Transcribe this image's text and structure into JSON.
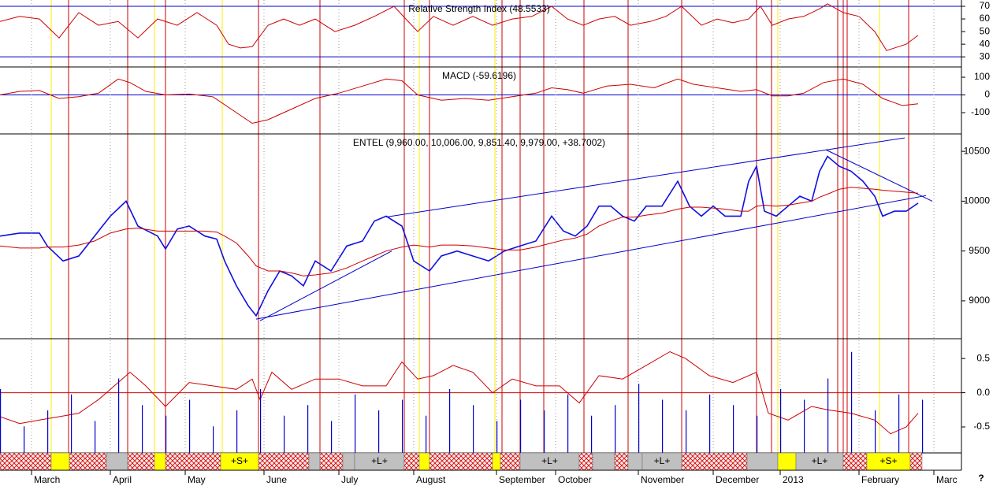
{
  "corner_label": "?",
  "signals": {
    "red_color": "#cc0000",
    "yellow_color": "#ffee00",
    "red_x": [
      17.4,
      32.4,
      42,
      65.6,
      81.2,
      102.6,
      109,
      127.4,
      132,
      138,
      148.2,
      159.4,
      173,
      192,
      195.8,
      212.6,
      214,
      215,
      230.6
    ],
    "yellow_x": [
      13,
      39.2,
      56.4,
      106.4,
      125.6,
      197.4,
      223.2
    ]
  },
  "band": {
    "segments": [
      {
        "x": [
          0,
          13
        ],
        "color": "#cc0000",
        "hatch": true
      },
      {
        "x": [
          13,
          17.6
        ],
        "color": "#ffff00"
      },
      {
        "x": [
          17.6,
          27
        ],
        "color": "#cc0000",
        "hatch": true
      },
      {
        "x": [
          27,
          32.4
        ],
        "color": "#c0c0c0"
      },
      {
        "x": [
          32.4,
          39.2
        ],
        "color": "#cc0000",
        "hatch": true
      },
      {
        "x": [
          39.2,
          42
        ],
        "color": "#ffff00"
      },
      {
        "x": [
          42,
          56
        ],
        "color": "#cc0000",
        "hatch": true
      },
      {
        "x": [
          56,
          65.6
        ],
        "color": "#ffff00",
        "label": "+S+"
      },
      {
        "x": [
          65.6,
          78.4
        ],
        "color": "#cc0000",
        "hatch": true
      },
      {
        "x": [
          78.4,
          81.2
        ],
        "color": "#c0c0c0"
      },
      {
        "x": [
          81.2,
          87
        ],
        "color": "#cc0000",
        "hatch": true
      },
      {
        "x": [
          87,
          90
        ],
        "color": "#c0c0c0"
      },
      {
        "x": [
          90,
          102.6
        ],
        "color": "#c0c0c0",
        "label": "+L+"
      },
      {
        "x": [
          102.6,
          106.4
        ],
        "color": "#cc0000",
        "hatch": true
      },
      {
        "x": [
          106.4,
          109
        ],
        "color": "#ffff00"
      },
      {
        "x": [
          109,
          125
        ],
        "color": "#cc0000",
        "hatch": true
      },
      {
        "x": [
          125,
          127
        ],
        "color": "#ffff00"
      },
      {
        "x": [
          127,
          132
        ],
        "color": "#cc0000",
        "hatch": true
      },
      {
        "x": [
          132,
          147
        ],
        "color": "#c0c0c0",
        "label": "+L+"
      },
      {
        "x": [
          147,
          150.4
        ],
        "color": "#cc0000",
        "hatch": true
      },
      {
        "x": [
          150.4,
          156
        ],
        "color": "#c0c0c0"
      },
      {
        "x": [
          156,
          159.4
        ],
        "color": "#cc0000",
        "hatch": true
      },
      {
        "x": [
          159.4,
          163
        ],
        "color": "#c0c0c0"
      },
      {
        "x": [
          163,
          173
        ],
        "color": "#c0c0c0",
        "label": "+L+"
      },
      {
        "x": [
          173,
          189.6
        ],
        "color": "#cc0000",
        "hatch": true
      },
      {
        "x": [
          189.6,
          197.4
        ],
        "color": "#c0c0c0"
      },
      {
        "x": [
          197.4,
          202
        ],
        "color": "#ffff00"
      },
      {
        "x": [
          202,
          214
        ],
        "color": "#c0c0c0",
        "label": "+L+"
      },
      {
        "x": [
          214,
          220
        ],
        "color": "#cc0000",
        "hatch": true
      },
      {
        "x": [
          220,
          231
        ],
        "color": "#ffff00",
        "label": "+S+"
      },
      {
        "x": [
          231,
          234
        ],
        "color": "#cc0000",
        "hatch": true
      }
    ]
  },
  "chart_data": [
    {
      "type": "line",
      "title": "Relative Strength Index (48.5533)",
      "xlim": [
        0,
        244
      ],
      "ylim": [
        22,
        75
      ],
      "yticks": [
        30,
        40,
        50,
        60,
        70
      ],
      "levels": [
        70,
        30
      ],
      "level_color": "#0000cc",
      "x": [
        0,
        5,
        10,
        15,
        20,
        25,
        30,
        35,
        40,
        45,
        50,
        55,
        58,
        61,
        64,
        68,
        72,
        76,
        80,
        85,
        90,
        95,
        100,
        103,
        106,
        110,
        115,
        120,
        125,
        130,
        135,
        140,
        144,
        148,
        152,
        156,
        160,
        165,
        169,
        173,
        178,
        182,
        186,
        190,
        193,
        196,
        200,
        204,
        208,
        210,
        214,
        218,
        222,
        225,
        228,
        230,
        233
      ],
      "series": [
        {
          "color": "#cc0000",
          "values": [
            58,
            62,
            60,
            45,
            65,
            55,
            58,
            45,
            60,
            55,
            65,
            55,
            40,
            37,
            38,
            55,
            60,
            55,
            60,
            50,
            55,
            62,
            70,
            60,
            50,
            62,
            55,
            62,
            55,
            60,
            62,
            70,
            60,
            55,
            60,
            62,
            55,
            58,
            62,
            70,
            55,
            60,
            57,
            60,
            70,
            55,
            60,
            62,
            68,
            72,
            65,
            62,
            50,
            35,
            38,
            40,
            47
          ]
        }
      ]
    },
    {
      "type": "line",
      "title": "MACD (-59.6196)",
      "xlim": [
        0,
        244
      ],
      "ylim": [
        -220,
        158
      ],
      "yticks": [
        -100,
        0,
        100
      ],
      "levels": [
        0
      ],
      "level_color": "#0000cc",
      "x": [
        0,
        5,
        10,
        15,
        20,
        25,
        30,
        33,
        37,
        42,
        48,
        54,
        60,
        64,
        68,
        74,
        80,
        86,
        92,
        98,
        102,
        106,
        112,
        118,
        124,
        130,
        136,
        140,
        144,
        148,
        154,
        160,
        166,
        172,
        176,
        182,
        188,
        192,
        196,
        200,
        204,
        209,
        214,
        219,
        224,
        229,
        233
      ],
      "series": [
        {
          "color": "#cc0000",
          "values": [
            0,
            20,
            25,
            -20,
            -10,
            10,
            90,
            70,
            20,
            0,
            5,
            -10,
            -100,
            -160,
            -140,
            -80,
            -20,
            10,
            50,
            90,
            80,
            0,
            -30,
            -20,
            -30,
            -10,
            10,
            40,
            30,
            10,
            50,
            60,
            40,
            90,
            60,
            40,
            20,
            30,
            -5,
            -5,
            10,
            70,
            90,
            60,
            -20,
            -60,
            -50
          ]
        }
      ]
    },
    {
      "type": "line",
      "title": "ENTEL (9,960.00, 10,006.00, 9,851.40, 9,979.00, +38.7002)",
      "xlim": [
        0,
        244
      ],
      "ylim": [
        8620,
        10675
      ],
      "yticks": [
        9000,
        9500,
        10000,
        10500
      ],
      "x": [
        0,
        5,
        10,
        12,
        16,
        20,
        24,
        28,
        32,
        35,
        40,
        42,
        45,
        48,
        52,
        55,
        57,
        60,
        63,
        65,
        68,
        71,
        74,
        77,
        80,
        84,
        88,
        92,
        95,
        98,
        102,
        105,
        109,
        112,
        116,
        120,
        124,
        128,
        132,
        136,
        140,
        143,
        146,
        149,
        152,
        155,
        158,
        161,
        164,
        168,
        172,
        175,
        178,
        181,
        184,
        188,
        190,
        192,
        194,
        197,
        200,
        203,
        206,
        208,
        210,
        213,
        216,
        219,
        222,
        224,
        227,
        230,
        233
      ],
      "series": [
        {
          "color": "#1010e0",
          "values": [
            9650,
            9680,
            9680,
            9550,
            9400,
            9450,
            9650,
            9850,
            10000,
            9750,
            9650,
            9520,
            9720,
            9750,
            9650,
            9620,
            9400,
            9150,
            8950,
            8850,
            9100,
            9300,
            9250,
            9150,
            9400,
            9300,
            9550,
            9600,
            9800,
            9850,
            9750,
            9400,
            9300,
            9450,
            9500,
            9450,
            9400,
            9500,
            9550,
            9600,
            9850,
            9700,
            9650,
            9750,
            9950,
            9950,
            9850,
            9800,
            9950,
            9950,
            10200,
            9950,
            9850,
            9950,
            9850,
            9850,
            10200,
            10350,
            9900,
            9850,
            9950,
            10050,
            10000,
            10300,
            10450,
            10350,
            10300,
            10200,
            10050,
            9850,
            9900,
            9900,
            9980
          ]
        },
        {
          "color": "#cc0000",
          "values": [
            9550,
            9530,
            9530,
            9540,
            9540,
            9560,
            9600,
            9680,
            9720,
            9730,
            9700,
            9700,
            9700,
            9700,
            9700,
            9690,
            9650,
            9580,
            9450,
            9350,
            9300,
            9300,
            9280,
            9250,
            9260,
            9280,
            9330,
            9400,
            9450,
            9500,
            9540,
            9560,
            9540,
            9560,
            9560,
            9550,
            9530,
            9510,
            9510,
            9540,
            9580,
            9610,
            9630,
            9670,
            9750,
            9800,
            9840,
            9840,
            9860,
            9880,
            9920,
            9940,
            9940,
            9930,
            9920,
            9900,
            9900,
            9950,
            9960,
            9950,
            9960,
            9980,
            10000,
            10040,
            10070,
            10120,
            10140,
            10130,
            10120,
            10110,
            10100,
            10090,
            10080
          ]
        }
      ],
      "trendline_color": "#0000cc",
      "trendlines": [
        {
          "x": [
            98,
            229.6
          ],
          "y": [
            9841,
            10635
          ]
        },
        {
          "x": [
            65,
            235
          ],
          "y": [
            8817,
            10056
          ]
        },
        {
          "x": [
            66,
            99.4
          ],
          "y": [
            8800,
            9500
          ]
        },
        {
          "x": [
            209.6,
            236.6
          ],
          "y": [
            10516,
            10000
          ]
        }
      ]
    },
    {
      "type": "line",
      "xlim": [
        0,
        244
      ],
      "ylim": [
        -0.88,
        0.79
      ],
      "yticks": [
        {
          "value": 0.5,
          "label": "0.5"
        },
        {
          "value": 0,
          "label": "0.0"
        },
        {
          "value": -0.5,
          "label": "-0.5"
        }
      ],
      "levels": [
        0
      ],
      "level_color": "#cc0000",
      "xticks": [
        {
          "value": 8,
          "label": "March"
        },
        {
          "value": 28,
          "label": "April"
        },
        {
          "value": 47,
          "label": "May"
        },
        {
          "value": 67,
          "label": "June"
        },
        {
          "value": 86,
          "label": "July"
        },
        {
          "value": 105,
          "label": "August"
        },
        {
          "value": 126,
          "label": "September"
        },
        {
          "value": 141,
          "label": "October"
        },
        {
          "value": 162,
          "label": "November"
        },
        {
          "value": 181,
          "label": "December"
        },
        {
          "value": 198,
          "label": "2013"
        },
        {
          "value": 218,
          "label": "February"
        },
        {
          "value": 237,
          "label": "Marc"
        }
      ],
      "x": [
        0,
        5,
        10,
        15,
        20,
        25,
        30,
        33,
        37,
        42,
        48,
        54,
        60,
        64,
        66,
        69,
        74,
        80,
        86,
        92,
        98,
        102,
        106,
        110,
        115,
        120,
        125,
        130,
        136,
        142,
        147,
        152,
        158,
        164,
        170,
        174,
        180,
        186,
        192,
        195,
        200,
        206,
        210,
        216,
        222,
        226,
        230,
        233
      ],
      "series": [
        {
          "color": "#cc0000",
          "values": [
            -0.35,
            -0.45,
            -0.4,
            -0.35,
            -0.3,
            -0.1,
            0.15,
            0.3,
            0.1,
            -0.2,
            0.15,
            0.1,
            0.05,
            0.2,
            -0.1,
            0.3,
            0.05,
            0.2,
            0.2,
            0.1,
            0.1,
            0.45,
            0.2,
            0.25,
            0.4,
            0.3,
            0,
            0.2,
            0.1,
            0.1,
            -0.15,
            0.25,
            0.2,
            0.4,
            0.6,
            0.5,
            0.25,
            0.15,
            0.3,
            -0.3,
            -0.4,
            -0.2,
            -0.25,
            -0.3,
            -0.4,
            -0.6,
            -0.5,
            -0.3
          ]
        }
      ]
    },
    {
      "type": "bar",
      "xlim": [
        0,
        244
      ],
      "ylim": [
        0,
        100
      ],
      "color": "#0000cc",
      "x": [
        0,
        6,
        12,
        18,
        24,
        30,
        36,
        42,
        48,
        54,
        60,
        66,
        72,
        78,
        84,
        90,
        96,
        102,
        108,
        114,
        120,
        126,
        132,
        138,
        144,
        150,
        156,
        162,
        168,
        174,
        180,
        186,
        192,
        198,
        204,
        210,
        216,
        222,
        228,
        234
      ],
      "values": [
        60,
        25,
        40,
        55,
        30,
        70,
        45,
        35,
        50,
        25,
        40,
        60,
        35,
        45,
        30,
        55,
        40,
        50,
        35,
        60,
        45,
        30,
        50,
        40,
        55,
        35,
        45,
        65,
        50,
        40,
        55,
        45,
        35,
        60,
        50,
        70,
        95,
        40,
        55,
        50
      ]
    }
  ]
}
